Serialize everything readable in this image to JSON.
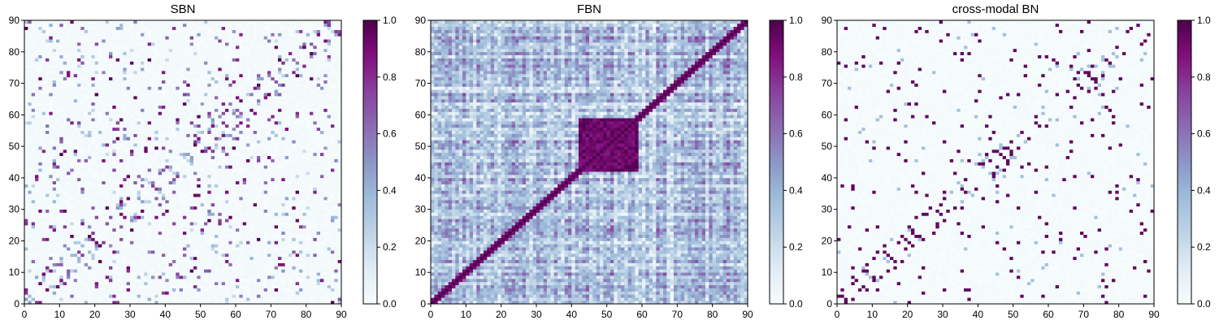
{
  "figure": {
    "colormap": "BuPu"
  },
  "chart_data": [
    {
      "type": "heatmap",
      "title": "SBN",
      "size": 90,
      "xlim": [
        0,
        90
      ],
      "ylim": [
        0,
        90
      ],
      "xticks": [
        "0",
        "10",
        "20",
        "30",
        "40",
        "50",
        "60",
        "70",
        "80",
        "90"
      ],
      "yticks": [
        "0",
        "10",
        "20",
        "30",
        "40",
        "50",
        "60",
        "70",
        "80",
        "90"
      ],
      "colorbar": {
        "range": [
          0.0,
          1.0
        ],
        "ticks": [
          "0.0",
          "0.2",
          "0.4",
          "0.6",
          "0.8",
          "1.0"
        ]
      },
      "pattern": "sparse structural connectivity: near-zero background with scattered strong entries along and near the diagonal and in symmetric off-diagonal blocks",
      "background_level": 0.03,
      "density": 0.07,
      "seed": 11
    },
    {
      "type": "heatmap",
      "title": "FBN",
      "size": 90,
      "xlim": [
        0,
        90
      ],
      "ylim": [
        0,
        90
      ],
      "xticks": [
        "0",
        "10",
        "20",
        "30",
        "40",
        "50",
        "60",
        "70",
        "80",
        "90"
      ],
      "yticks": [
        "0",
        "10",
        "20",
        "30",
        "40",
        "50",
        "60",
        "70",
        "80",
        "90"
      ],
      "colorbar": {
        "range": [
          0.0,
          1.0
        ],
        "ticks": [
          "0.0",
          "0.2",
          "0.4",
          "0.6",
          "0.8",
          "1.0"
        ]
      },
      "pattern": "dense functional connectivity: mid-range values everywhere with a strong block around nodes 42-58 and stripes",
      "strong_block": [
        42,
        58
      ],
      "seed": 23
    },
    {
      "type": "heatmap",
      "title": "cross-modal BN",
      "size": 90,
      "xlim": [
        0,
        90
      ],
      "ylim": [
        0,
        90
      ],
      "xticks": [
        "0",
        "10",
        "20",
        "30",
        "40",
        "50",
        "60",
        "70",
        "80",
        "90"
      ],
      "yticks": [
        "0",
        "10",
        "20",
        "30",
        "40",
        "50",
        "60",
        "70",
        "80",
        "90"
      ],
      "colorbar": {
        "range": [
          0.0,
          1.0
        ],
        "ticks": [
          "0.0",
          "0.2",
          "0.4",
          "0.6",
          "0.8",
          "1.0"
        ]
      },
      "pattern": "sparse binarized connectivity: near-zero background with strong isolated entries near the diagonal and symmetric off-diagonal clusters",
      "background_level": 0.02,
      "density": 0.05,
      "seed": 37
    }
  ]
}
